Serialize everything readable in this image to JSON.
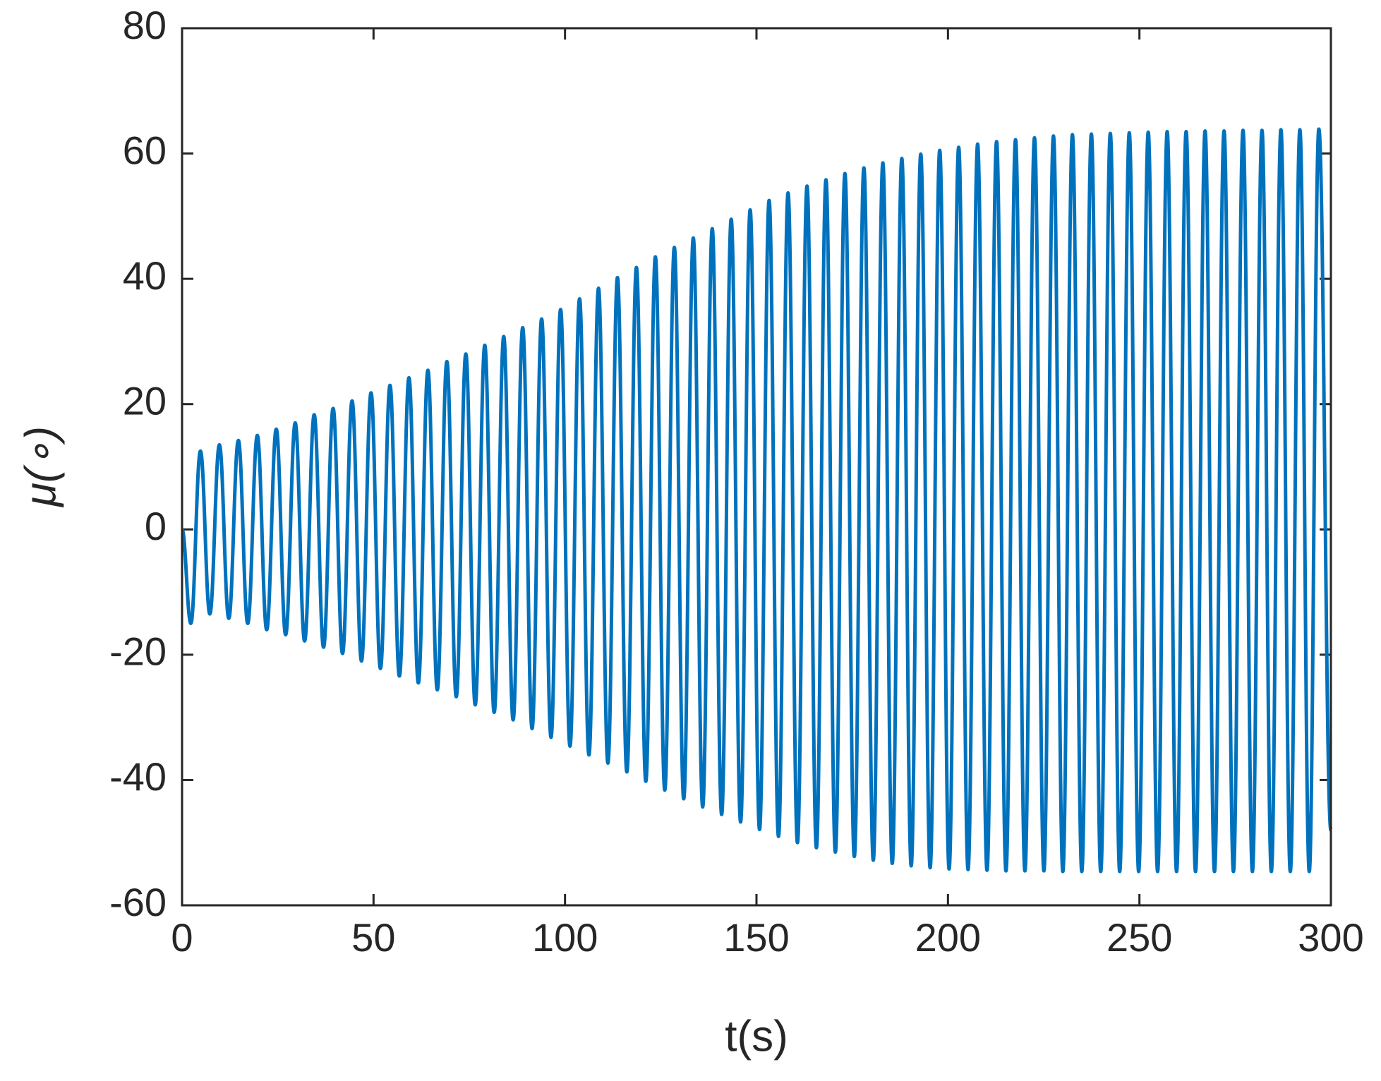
{
  "chart_data": {
    "type": "line",
    "x_label": "t(s)",
    "y_label": "μ(∘)",
    "x": [
      0,
      2.3,
      4.8,
      7.25,
      9.75,
      12.2,
      14.7,
      17.15,
      19.65,
      22.1,
      24.6,
      27.05,
      29.55,
      32,
      34.5,
      36.95,
      39.45,
      41.9,
      44.4,
      46.85,
      49.35,
      51.8,
      54.3,
      56.75,
      59.25,
      61.7,
      64.2,
      66.65,
      69.15,
      71.6,
      74.1,
      76.55,
      79.05,
      81.5,
      84,
      86.45,
      88.95,
      91.4,
      93.9,
      96.35,
      98.85,
      101.3,
      103.8,
      106.25,
      108.75,
      111.2,
      113.7,
      116.15,
      118.65,
      121.1,
      123.6,
      126.05,
      128.55,
      131,
      133.5,
      135.95,
      138.45,
      140.9,
      143.4,
      145.85,
      148.35,
      150.8,
      153.3,
      155.75,
      158.25,
      160.7,
      163.2,
      165.65,
      168.15,
      170.6,
      173.1,
      175.55,
      178.05,
      180.5,
      183,
      185.45,
      187.95,
      190.4,
      192.9,
      195.35,
      197.85,
      200.3,
      202.8,
      205.25,
      207.75,
      210.2,
      212.7,
      215.15,
      217.65,
      220.1,
      222.6,
      225.05,
      227.55,
      230,
      232.5,
      234.95,
      237.45,
      239.9,
      242.4,
      244.85,
      247.35,
      249.8,
      252.3,
      254.75,
      257.25,
      259.7,
      262.2,
      264.65,
      267.15,
      269.6,
      272.1,
      274.55,
      277.05,
      279.5,
      282,
      284.45,
      286.95,
      289.4,
      291.9,
      294.35,
      296.85,
      300
    ],
    "series": [
      {
        "color": "#0072bd",
        "values": [
          0,
          -15,
          12.5,
          -13.5,
          13.5,
          -14.2,
          14.2,
          -15,
          15,
          -16,
          16,
          -16.8,
          17,
          -17.8,
          18.3,
          -18.8,
          19.3,
          -19.8,
          20.5,
          -21,
          21.8,
          -22.2,
          23,
          -23.4,
          24.2,
          -24.5,
          25.4,
          -25.6,
          26.8,
          -26.7,
          28,
          -28,
          29.4,
          -29.2,
          30.8,
          -30.4,
          32.2,
          -31.8,
          33.6,
          -33.2,
          35.1,
          -34.6,
          36.8,
          -36,
          38.5,
          -37.3,
          40.2,
          -38.7,
          41.8,
          -40.2,
          43.5,
          -41.6,
          45,
          -43,
          46.5,
          -44.3,
          48,
          -45.5,
          49.5,
          -46.7,
          51,
          -47.9,
          52.5,
          -49,
          53.7,
          -50,
          54.8,
          -50.8,
          55.8,
          -51.5,
          56.8,
          -52.2,
          57.7,
          -52.8,
          58.5,
          -53.3,
          59.2,
          -53.7,
          59.9,
          -54,
          60.5,
          -54.2,
          61,
          -54.3,
          61.5,
          -54.4,
          61.9,
          -54.5,
          62.2,
          -54.5,
          62.5,
          -54.5,
          62.8,
          -54.6,
          63,
          -54.6,
          63.1,
          -54.6,
          63.2,
          -54.6,
          63.3,
          -54.6,
          63.4,
          -54.6,
          63.5,
          -54.6,
          63.5,
          -54.6,
          63.6,
          -54.6,
          63.6,
          -54.6,
          63.7,
          -54.6,
          63.7,
          -54.6,
          63.8,
          -54.6,
          63.8,
          -54.6,
          63.9,
          -48
        ]
      }
    ],
    "xlim": [
      0,
      300
    ],
    "xticks": [
      0,
      50,
      100,
      150,
      200,
      250,
      300
    ],
    "ylim": [
      -60,
      80
    ],
    "yticks": [
      -60,
      -40,
      -20,
      0,
      20,
      40,
      60,
      80
    ],
    "grid": false
  }
}
